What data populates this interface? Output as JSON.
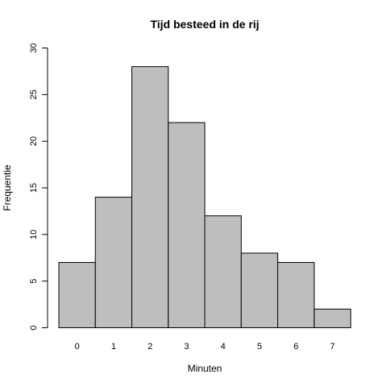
{
  "chart_data": {
    "type": "bar",
    "title": "Tijd besteed in de rij",
    "xlabel": "Minuten",
    "ylabel": "Frequentie",
    "categories": [
      "0",
      "1",
      "2",
      "3",
      "4",
      "5",
      "6",
      "7"
    ],
    "values": [
      7,
      14,
      28,
      22,
      12,
      8,
      7,
      2
    ],
    "ylim": [
      0,
      30
    ],
    "yticks": [
      0,
      5,
      10,
      15,
      20,
      25,
      30
    ],
    "grid": false,
    "bar_color": "#bebebe",
    "edge_color": "#000000"
  }
}
